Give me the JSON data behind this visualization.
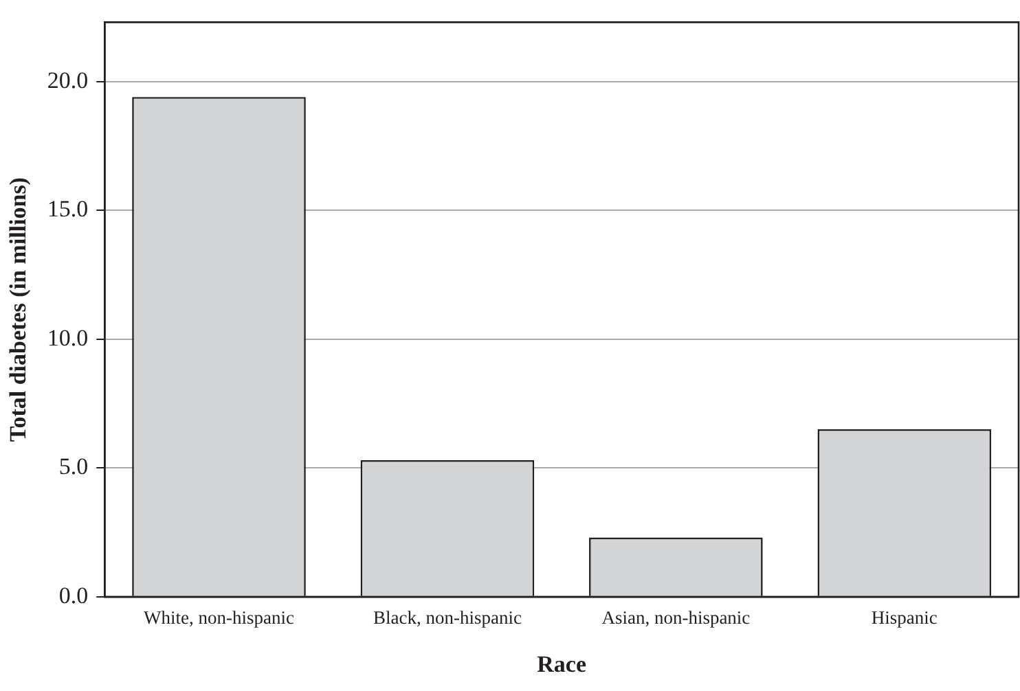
{
  "chart_data": {
    "type": "bar",
    "xlabel": "Race",
    "ylabel": "Total diabetes (in millions)",
    "categories": [
      "White, non-hispanic",
      "Black, non-hispanic",
      "Asian, non-hispanic",
      "Hispanic"
    ],
    "values": [
      19.4,
      5.3,
      2.3,
      6.5
    ],
    "color": "#d3d4d6",
    "ylim": [
      0,
      22.3
    ],
    "yticks": [
      {
        "value": 0,
        "label": "0.0"
      },
      {
        "value": 5,
        "label": "5.0"
      },
      {
        "value": 10,
        "label": "10.0"
      },
      {
        "value": 15,
        "label": "15.0"
      },
      {
        "value": 20,
        "label": "20.0"
      }
    ],
    "grid": "y",
    "legend": false
  }
}
